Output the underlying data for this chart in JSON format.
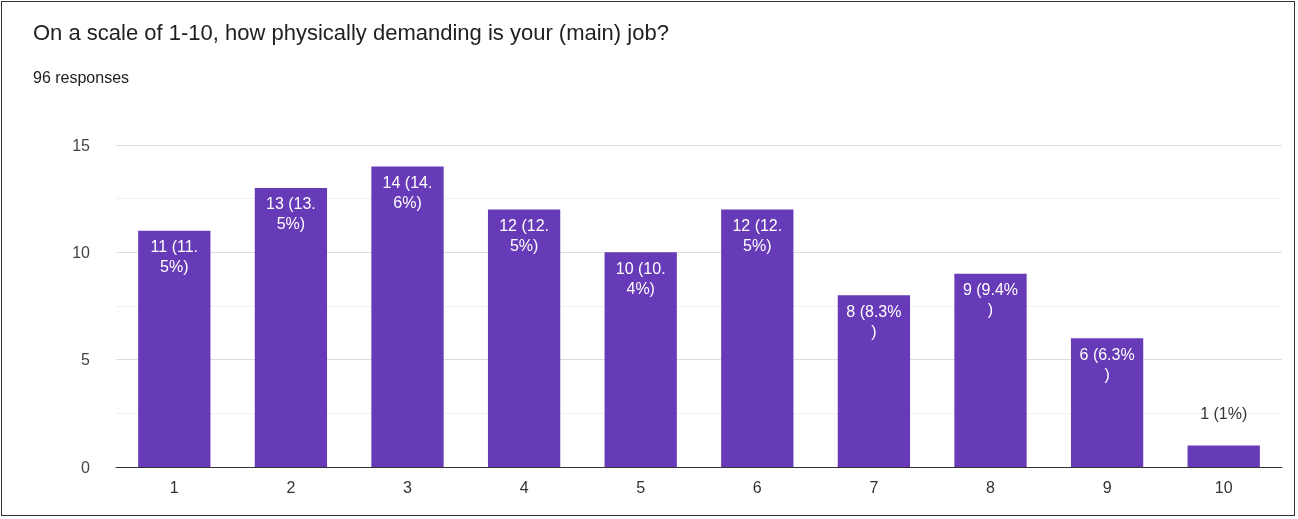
{
  "chart_data": {
    "type": "bar",
    "title": "On a scale of 1-10, how physically demanding is your (main) job?",
    "subtitle": "96 responses",
    "categories": [
      "1",
      "2",
      "3",
      "4",
      "5",
      "6",
      "7",
      "8",
      "9",
      "10"
    ],
    "values": [
      11,
      13,
      14,
      12,
      10,
      12,
      8,
      9,
      6,
      1
    ],
    "value_labels": [
      "11 (11.5%)",
      "13 (13.5%)",
      "14 (14.6%)",
      "12 (12.5%)",
      "10 (10.4%)",
      "12 (12.5%)",
      "8 (8.3%)",
      "9 (9.4%)",
      "6 (6.3%)",
      "1 (1%)"
    ],
    "color": "#673ab7",
    "ylim": [
      0,
      15
    ],
    "yticks": [
      0,
      5,
      10,
      15
    ],
    "grid": true
  }
}
